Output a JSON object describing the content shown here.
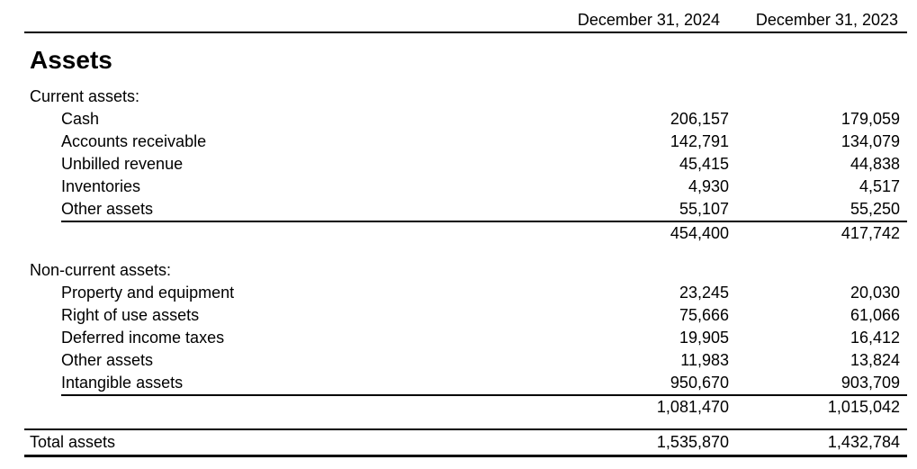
{
  "columns": [
    "December 31, 2024",
    "December 31, 2023"
  ],
  "title": "Assets",
  "sections": [
    {
      "heading": "Current assets:",
      "rows": [
        {
          "label": "Cash",
          "v2024": "206,157",
          "v2023": "179,059"
        },
        {
          "label": "Accounts receivable",
          "v2024": "142,791",
          "v2023": "134,079"
        },
        {
          "label": "Unbilled revenue",
          "v2024": "45,415",
          "v2023": "44,838"
        },
        {
          "label": "Inventories",
          "v2024": "4,930",
          "v2023": "4,517"
        },
        {
          "label": "Other assets",
          "v2024": "55,107",
          "v2023": "55,250"
        }
      ],
      "subtotal": {
        "v2024": "454,400",
        "v2023": "417,742"
      }
    },
    {
      "heading": "Non-current assets:",
      "rows": [
        {
          "label": "Property and equipment",
          "v2024": "23,245",
          "v2023": "20,030"
        },
        {
          "label": "Right of use assets",
          "v2024": "75,666",
          "v2023": "61,066"
        },
        {
          "label": "Deferred income taxes",
          "v2024": "19,905",
          "v2023": "16,412"
        },
        {
          "label": "Other assets",
          "v2024": "11,983",
          "v2023": "13,824"
        },
        {
          "label": "Intangible assets",
          "v2024": "950,670",
          "v2023": "903,709"
        }
      ],
      "subtotal": {
        "v2024": "1,081,470",
        "v2023": "1,015,042"
      }
    }
  ],
  "total": {
    "label": "Total assets",
    "v2024": "1,535,870",
    "v2023": "1,432,784"
  }
}
